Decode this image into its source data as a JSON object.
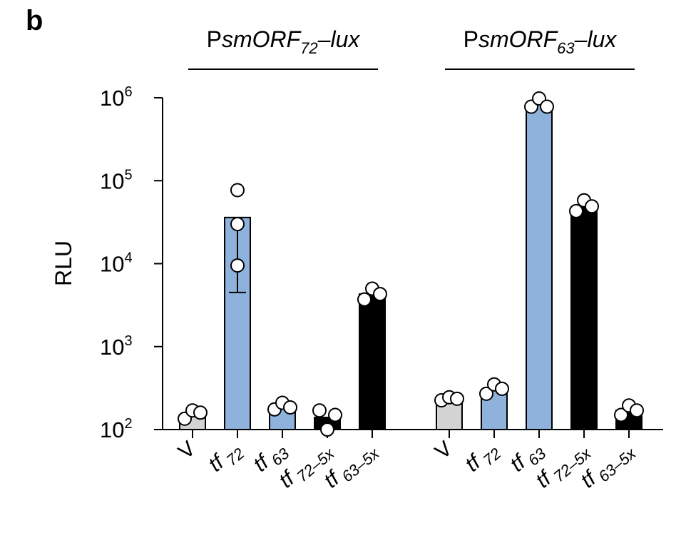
{
  "panel_label": "b",
  "chart_data": {
    "type": "bar",
    "yscale": "log",
    "ylim": [
      100,
      1000000
    ],
    "ylabel": "RLU",
    "yticks": [
      {
        "base": "10",
        "exp": "2",
        "value": 100
      },
      {
        "base": "10",
        "exp": "3",
        "value": 1000
      },
      {
        "base": "10",
        "exp": "4",
        "value": 10000
      },
      {
        "base": "10",
        "exp": "5",
        "value": 100000
      },
      {
        "base": "10",
        "exp": "6",
        "value": 1000000
      }
    ],
    "groups": [
      {
        "title": {
          "prefix": "P",
          "main": "smORF",
          "sub": "72",
          "suffix": "–lux"
        },
        "bars": [
          {
            "label": "V",
            "sub": "",
            "color": "#d3d3d3",
            "value": 150,
            "points": [
              135,
              170,
              160
            ]
          },
          {
            "label": "tf",
            "sub": "72",
            "color": "#8eb2dc",
            "value": 36000,
            "error": [
              4500,
              36000
            ],
            "points": [
              77000,
              30000,
              9500
            ]
          },
          {
            "label": "tf",
            "sub": "63",
            "color": "#8eb2dc",
            "value": 190,
            "points": [
              175,
              210,
              185
            ]
          },
          {
            "label": "tf",
            "sub": "72–5x",
            "color": "#000000",
            "value": 140,
            "points": [
              170,
              100,
              150
            ]
          },
          {
            "label": "tf",
            "sub": "63–5x",
            "color": "#000000",
            "value": 4300,
            "points": [
              3700,
              5000,
              4300
            ]
          }
        ]
      },
      {
        "title": {
          "prefix": "P",
          "main": "smORF",
          "sub": "63",
          "suffix": "–lux"
        },
        "bars": [
          {
            "label": "V",
            "sub": "",
            "color": "#d3d3d3",
            "value": 230,
            "points": [
              225,
              245,
              235
            ]
          },
          {
            "label": "tf",
            "sub": "72",
            "color": "#8eb2dc",
            "value": 300,
            "points": [
              270,
              350,
              310
            ]
          },
          {
            "label": "tf",
            "sub": "63",
            "color": "#8eb2dc",
            "value": 850000,
            "points": [
              780000,
              980000,
              780000
            ]
          },
          {
            "label": "tf",
            "sub": "72–5x",
            "color": "#000000",
            "value": 48000,
            "points": [
              43000,
              58000,
              49000
            ]
          },
          {
            "label": "tf",
            "sub": "63–5x",
            "color": "#000000",
            "value": 170,
            "points": [
              150,
              195,
              170
            ]
          }
        ]
      }
    ]
  }
}
